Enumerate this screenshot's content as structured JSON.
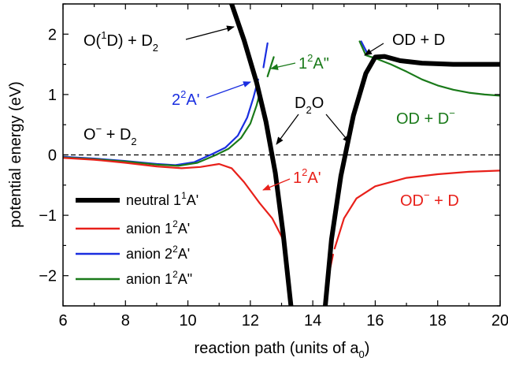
{
  "chart_data": {
    "type": "line",
    "xlabel": "reaction path (units of a",
    "xlabel_sub": "0",
    "xlabel_close": ")",
    "ylabel": "potential energy (eV)",
    "xlim": [
      6,
      20
    ],
    "ylim": [
      -2.5,
      2.5
    ],
    "x_ticks": [
      6,
      8,
      10,
      12,
      14,
      16,
      18,
      20
    ],
    "y_ticks": [
      -2,
      -1,
      0,
      1,
      2
    ],
    "zero_line": "dashed",
    "series": [
      {
        "name": "neutral 1¹A'",
        "legend_main": "neutral 1",
        "legend_sup": "1",
        "legend_tail": "A'",
        "color": "#000000",
        "segments": [
          [
            [
              11.4,
              2.5
            ],
            [
              11.8,
              1.9
            ],
            [
              12.2,
              1.2
            ],
            [
              12.5,
              0.55
            ],
            [
              12.8,
              -0.3
            ],
            [
              13.05,
              -1.3
            ],
            [
              13.3,
              -2.5
            ]
          ],
          [
            [
              14.4,
              -2.5
            ],
            [
              14.6,
              -1.4
            ],
            [
              14.9,
              -0.35
            ],
            [
              15.3,
              0.65
            ],
            [
              15.7,
              1.35
            ],
            [
              16.0,
              1.62
            ],
            [
              16.3,
              1.63
            ],
            [
              16.8,
              1.56
            ],
            [
              17.5,
              1.52
            ],
            [
              18.5,
              1.5
            ],
            [
              20.0,
              1.5
            ]
          ]
        ]
      },
      {
        "name": "anion 1²A'",
        "legend_main": "anion 1",
        "legend_sup": "2",
        "legend_tail": "A'",
        "color": "#e8201a",
        "segments": [
          [
            [
              6.0,
              -0.05
            ],
            [
              7.0,
              -0.08
            ],
            [
              8.0,
              -0.13
            ],
            [
              9.0,
              -0.19
            ],
            [
              9.8,
              -0.22
            ],
            [
              10.4,
              -0.2
            ],
            [
              11.0,
              -0.15
            ],
            [
              11.4,
              -0.22
            ],
            [
              11.8,
              -0.45
            ],
            [
              12.3,
              -0.8
            ],
            [
              12.7,
              -1.05
            ],
            [
              13.0,
              -1.35
            ],
            [
              13.15,
              -1.6
            ]
          ],
          [
            [
              14.45,
              -2.15
            ],
            [
              14.65,
              -1.65
            ]
          ],
          [
            [
              14.7,
              -1.55
            ],
            [
              15.0,
              -1.05
            ],
            [
              15.4,
              -0.72
            ],
            [
              16.0,
              -0.52
            ],
            [
              17.0,
              -0.38
            ],
            [
              18.0,
              -0.32
            ],
            [
              19.0,
              -0.28
            ],
            [
              20.0,
              -0.26
            ]
          ]
        ]
      },
      {
        "name": "anion 2²A'",
        "legend_main": "anion 2",
        "legend_sup": "2",
        "legend_tail": "A'",
        "color": "#1a2ee0",
        "segments": [
          [
            [
              6.0,
              -0.03
            ],
            [
              7.0,
              -0.06
            ],
            [
              8.0,
              -0.1
            ],
            [
              9.0,
              -0.15
            ],
            [
              9.6,
              -0.17
            ],
            [
              10.2,
              -0.12
            ],
            [
              10.8,
              0.02
            ],
            [
              11.2,
              0.12
            ],
            [
              11.6,
              0.32
            ],
            [
              11.9,
              0.62
            ],
            [
              12.1,
              0.95
            ],
            [
              12.25,
              1.25
            ]
          ],
          [
            [
              12.42,
              1.45
            ],
            [
              12.55,
              1.85
            ]
          ],
          [
            [
              15.55,
              1.88
            ],
            [
              15.75,
              1.68
            ]
          ]
        ]
      },
      {
        "name": "anion 1²A\"",
        "legend_main": "anion 1",
        "legend_sup": "2",
        "legend_tail": "A\"",
        "color": "#1a7a1a",
        "segments": [
          [
            [
              6.0,
              -0.04
            ],
            [
              7.0,
              -0.07
            ],
            [
              8.0,
              -0.11
            ],
            [
              9.0,
              -0.16
            ],
            [
              9.7,
              -0.18
            ],
            [
              10.3,
              -0.13
            ],
            [
              10.9,
              0.0
            ],
            [
              11.3,
              0.1
            ],
            [
              11.7,
              0.28
            ],
            [
              12.0,
              0.52
            ],
            [
              12.2,
              0.82
            ],
            [
              12.3,
              1.02
            ]
          ],
          [
            [
              12.55,
              1.3
            ],
            [
              12.75,
              1.62
            ]
          ],
          [
            [
              15.5,
              1.88
            ],
            [
              15.7,
              1.65
            ],
            [
              16.0,
              1.6
            ],
            [
              16.5,
              1.5
            ],
            [
              17.0,
              1.38
            ],
            [
              17.5,
              1.25
            ],
            [
              18.0,
              1.15
            ],
            [
              18.5,
              1.08
            ],
            [
              19.0,
              1.03
            ],
            [
              19.5,
              1.0
            ],
            [
              20.0,
              0.98
            ]
          ]
        ]
      }
    ],
    "annotations": [
      {
        "id": "o1d",
        "parts": [
          "O(",
          "1",
          "D) + D",
          "2"
        ],
        "color": "#000000"
      },
      {
        "id": "od_d",
        "parts": [
          "OD + D"
        ],
        "color": "#000000"
      },
      {
        "id": "o_d2",
        "parts": [
          "O",
          "−",
          " + D",
          "2"
        ],
        "color": "#000000"
      },
      {
        "id": "d2o",
        "parts": [
          "D",
          "2",
          "O"
        ],
        "color": "#000000"
      },
      {
        "id": "a2",
        "parts": [
          "2",
          "2",
          "A'"
        ],
        "color": "#1a2ee0"
      },
      {
        "id": "a1pp",
        "parts": [
          "1",
          "2",
          "A\""
        ],
        "color": "#1a7a1a"
      },
      {
        "id": "a1p",
        "parts": [
          "1",
          "2",
          "A'"
        ],
        "color": "#e8201a"
      },
      {
        "id": "od_dm",
        "parts": [
          "OD + D",
          "−"
        ],
        "color": "#1a7a1a"
      },
      {
        "id": "odm_d",
        "parts": [
          "OD",
          "−",
          " + D"
        ],
        "color": "#e8201a"
      }
    ],
    "legend_position": "bottom-left"
  }
}
